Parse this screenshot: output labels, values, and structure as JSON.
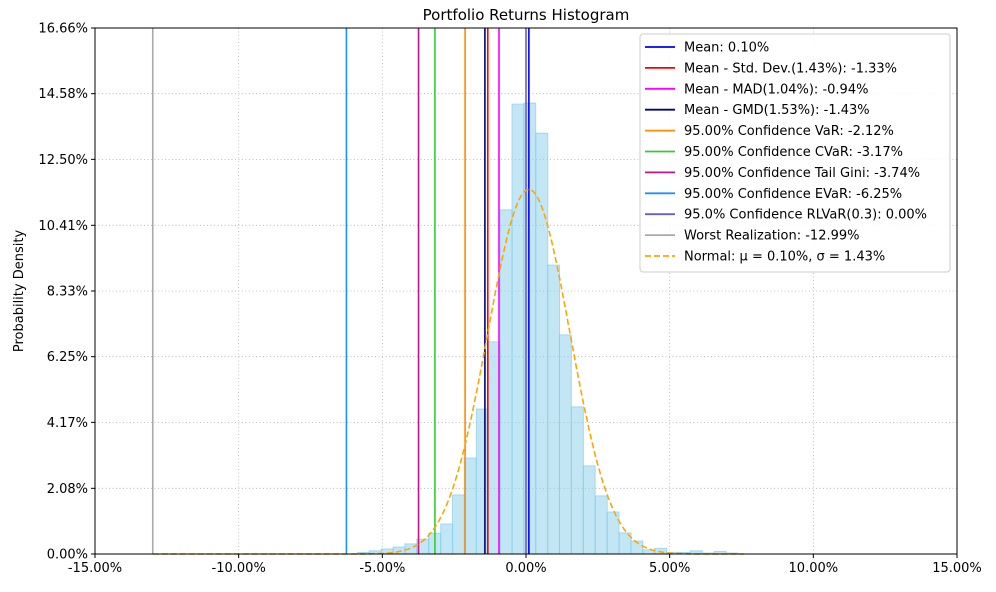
{
  "chart_data": {
    "type": "bar",
    "title": "Portfolio Returns Histogram",
    "xlabel": "",
    "ylabel": "Probability Density",
    "xlim": [
      -15,
      15
    ],
    "ylim": [
      0,
      16.66
    ],
    "x_ticks": [
      "-15.00%",
      "-10.00%",
      "-5.00%",
      "0.00%",
      "5.00%",
      "10.00%",
      "15.00%"
    ],
    "x_tick_values": [
      -15,
      -10,
      -5,
      0,
      5,
      10,
      15
    ],
    "y_ticks": [
      "0.00%",
      "2.08%",
      "4.17%",
      "6.25%",
      "8.33%",
      "10.41%",
      "12.50%",
      "14.58%",
      "16.66%"
    ],
    "y_tick_values": [
      0,
      2.08,
      4.17,
      6.25,
      8.33,
      10.41,
      12.5,
      14.58,
      16.66
    ],
    "grid": true,
    "legend_position": "top-right",
    "histogram": {
      "color": "#87ceeb",
      "bin_centers": [
        -5.66,
        -5.25,
        -4.83,
        -4.42,
        -4.01,
        -3.59,
        -3.18,
        -2.76,
        -2.35,
        -1.94,
        -1.52,
        -1.11,
        -0.69,
        -0.28,
        0.13,
        0.55,
        0.96,
        1.37,
        1.79,
        2.2,
        2.62,
        3.03,
        3.45,
        3.86,
        4.27,
        4.69,
        5.1,
        5.51,
        5.93,
        6.34,
        6.76,
        7.17
      ],
      "values": [
        0.05,
        0.1,
        0.16,
        0.22,
        0.32,
        0.47,
        0.66,
        0.95,
        1.87,
        3.04,
        4.59,
        6.72,
        10.9,
        14.25,
        14.28,
        13.33,
        9.15,
        6.94,
        4.66,
        2.79,
        1.84,
        1.33,
        0.67,
        0.41,
        0.13,
        0.18,
        0.05,
        0.05,
        0.1,
        0.03,
        0.08,
        0.03
      ]
    },
    "vlines": [
      {
        "label": "Mean: 0.10%",
        "x": 0.1,
        "color": "#0000ff"
      },
      {
        "label": "Mean - Std. Dev.(1.43%): -1.33%",
        "x": -1.33,
        "color": "#ff0000"
      },
      {
        "label": "Mean - MAD(1.04%): -0.94%",
        "x": -0.94,
        "color": "#ff00ff"
      },
      {
        "label": "Mean - GMD(1.53%): -1.43%",
        "x": -1.43,
        "color": "#000080"
      },
      {
        "label": "95.00% Confidence VaR: -2.12%",
        "x": -2.12,
        "color": "#ff8c00"
      },
      {
        "label": "95.00% Confidence CVaR: -3.17%",
        "x": -3.17,
        "color": "#32cd32"
      },
      {
        "label": "95.00% Confidence Tail Gini: -3.74%",
        "x": -3.74,
        "color": "#c71585"
      },
      {
        "label": "95.00% Confidence EVaR: -6.25%",
        "x": -6.25,
        "color": "#1e90ff"
      },
      {
        "label": "95.0% Confidence RLVaR(0.3): 0.00%",
        "x": 0.0,
        "color": "#6a5acd"
      },
      {
        "label": "Worst Realization: -12.99%",
        "x": -12.99,
        "color": "#a9a9a9"
      }
    ],
    "normal_curve": {
      "label": "Normal: μ = 0.10%, σ = 1.43%",
      "mu": 0.1,
      "sigma": 1.43,
      "color": "#ffa500",
      "style": "dashed"
    }
  }
}
